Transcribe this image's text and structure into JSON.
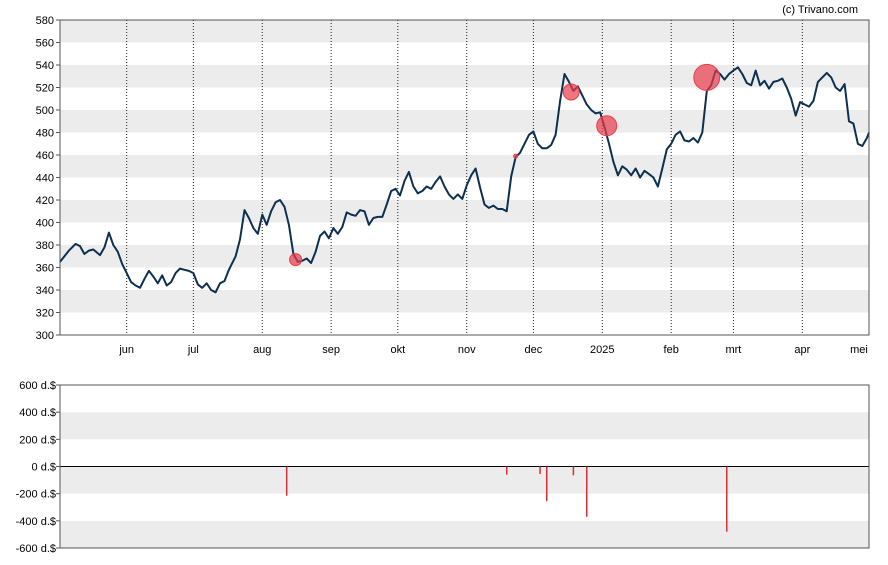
{
  "copyright": "(c) Trivano.com",
  "chart_data": [
    {
      "type": "line",
      "ylim": [
        300,
        580
      ],
      "yticks": [
        300,
        320,
        340,
        360,
        380,
        400,
        420,
        440,
        460,
        480,
        500,
        520,
        540,
        560,
        580
      ],
      "xlim": [
        "2024-05-02",
        "2025-05-01"
      ],
      "month_ticks": [
        {
          "label": "jun",
          "date": "2024-06-01"
        },
        {
          "label": "jul",
          "date": "2024-07-01"
        },
        {
          "label": "aug",
          "date": "2024-08-01"
        },
        {
          "label": "sep",
          "date": "2024-09-01"
        },
        {
          "label": "okt",
          "date": "2024-10-01"
        },
        {
          "label": "nov",
          "date": "2024-11-01"
        },
        {
          "label": "dec",
          "date": "2024-12-01"
        },
        {
          "label": "2025",
          "date": "2025-01-01"
        },
        {
          "label": "feb",
          "date": "2025-02-01"
        },
        {
          "label": "mrt",
          "date": "2025-03-01"
        },
        {
          "label": "apr",
          "date": "2025-04-01"
        },
        {
          "label": "mei",
          "date": "2025-05-01"
        }
      ],
      "line_color": "#0d3050",
      "price": [
        [
          "2024-05-02",
          365
        ],
        [
          "2024-05-06",
          375
        ],
        [
          "2024-05-09",
          381
        ],
        [
          "2024-05-11",
          379
        ],
        [
          "2024-05-13",
          372
        ],
        [
          "2024-05-15",
          375
        ],
        [
          "2024-05-17",
          376
        ],
        [
          "2024-05-20",
          371
        ],
        [
          "2024-05-22",
          378
        ],
        [
          "2024-05-24",
          391
        ],
        [
          "2024-05-26",
          380
        ],
        [
          "2024-05-28",
          374
        ],
        [
          "2024-05-30",
          363
        ],
        [
          "2024-06-01",
          355
        ],
        [
          "2024-06-03",
          347
        ],
        [
          "2024-06-05",
          344
        ],
        [
          "2024-06-07",
          342
        ],
        [
          "2024-06-09",
          350
        ],
        [
          "2024-06-11",
          357
        ],
        [
          "2024-06-13",
          352
        ],
        [
          "2024-06-15",
          346
        ],
        [
          "2024-06-17",
          353
        ],
        [
          "2024-06-19",
          344
        ],
        [
          "2024-06-21",
          347
        ],
        [
          "2024-06-23",
          355
        ],
        [
          "2024-06-25",
          359
        ],
        [
          "2024-06-27",
          358
        ],
        [
          "2024-06-29",
          357
        ],
        [
          "2024-07-01",
          355
        ],
        [
          "2024-07-03",
          345
        ],
        [
          "2024-07-05",
          342
        ],
        [
          "2024-07-07",
          346
        ],
        [
          "2024-07-09",
          340
        ],
        [
          "2024-07-11",
          338
        ],
        [
          "2024-07-13",
          346
        ],
        [
          "2024-07-15",
          348
        ],
        [
          "2024-07-17",
          358
        ],
        [
          "2024-07-20",
          370
        ],
        [
          "2024-07-22",
          385
        ],
        [
          "2024-07-24",
          411
        ],
        [
          "2024-07-26",
          404
        ],
        [
          "2024-07-28",
          395
        ],
        [
          "2024-07-30",
          390
        ],
        [
          "2024-08-01",
          407
        ],
        [
          "2024-08-03",
          398
        ],
        [
          "2024-08-05",
          410
        ],
        [
          "2024-08-07",
          418
        ],
        [
          "2024-08-09",
          420
        ],
        [
          "2024-08-11",
          414
        ],
        [
          "2024-08-13",
          398
        ],
        [
          "2024-08-15",
          372
        ],
        [
          "2024-08-17",
          365
        ],
        [
          "2024-08-19",
          366
        ],
        [
          "2024-08-21",
          368
        ],
        [
          "2024-08-23",
          364
        ],
        [
          "2024-08-25",
          374
        ],
        [
          "2024-08-27",
          388
        ],
        [
          "2024-08-29",
          392
        ],
        [
          "2024-08-31",
          386
        ],
        [
          "2024-09-02",
          395
        ],
        [
          "2024-09-04",
          390
        ],
        [
          "2024-09-06",
          396
        ],
        [
          "2024-09-08",
          409
        ],
        [
          "2024-09-10",
          407
        ],
        [
          "2024-09-12",
          406
        ],
        [
          "2024-09-14",
          411
        ],
        [
          "2024-09-16",
          410
        ],
        [
          "2024-09-18",
          398
        ],
        [
          "2024-09-20",
          404
        ],
        [
          "2024-09-22",
          405
        ],
        [
          "2024-09-24",
          405
        ],
        [
          "2024-09-26",
          416
        ],
        [
          "2024-09-28",
          428
        ],
        [
          "2024-09-30",
          430
        ],
        [
          "2024-10-02",
          424
        ],
        [
          "2024-10-04",
          437
        ],
        [
          "2024-10-06",
          445
        ],
        [
          "2024-10-08",
          432
        ],
        [
          "2024-10-10",
          426
        ],
        [
          "2024-10-12",
          428
        ],
        [
          "2024-10-14",
          432
        ],
        [
          "2024-10-16",
          430
        ],
        [
          "2024-10-18",
          436
        ],
        [
          "2024-10-20",
          441
        ],
        [
          "2024-10-22",
          432
        ],
        [
          "2024-10-24",
          425
        ],
        [
          "2024-10-26",
          421
        ],
        [
          "2024-10-28",
          425
        ],
        [
          "2024-10-30",
          421
        ],
        [
          "2024-11-01",
          433
        ],
        [
          "2024-11-03",
          442
        ],
        [
          "2024-11-05",
          448
        ],
        [
          "2024-11-07",
          431
        ],
        [
          "2024-11-09",
          416
        ],
        [
          "2024-11-11",
          413
        ],
        [
          "2024-11-13",
          415
        ],
        [
          "2024-11-15",
          412
        ],
        [
          "2024-11-17",
          412
        ],
        [
          "2024-11-19",
          410
        ],
        [
          "2024-11-21",
          441
        ],
        [
          "2024-11-23",
          458
        ],
        [
          "2024-11-25",
          462
        ],
        [
          "2024-11-27",
          470
        ],
        [
          "2024-11-29",
          478
        ],
        [
          "2024-12-01",
          481
        ],
        [
          "2024-12-03",
          470
        ],
        [
          "2024-12-05",
          466
        ],
        [
          "2024-12-07",
          466
        ],
        [
          "2024-12-09",
          469
        ],
        [
          "2024-12-11",
          478
        ],
        [
          "2024-12-13",
          508
        ],
        [
          "2024-12-15",
          532
        ],
        [
          "2024-12-17",
          525
        ],
        [
          "2024-12-19",
          517
        ],
        [
          "2024-12-21",
          521
        ],
        [
          "2024-12-23",
          513
        ],
        [
          "2024-12-25",
          505
        ],
        [
          "2024-12-27",
          500
        ],
        [
          "2024-12-29",
          497
        ],
        [
          "2024-12-31",
          498
        ],
        [
          "2025-01-02",
          485
        ],
        [
          "2025-01-04",
          470
        ],
        [
          "2025-01-06",
          454
        ],
        [
          "2025-01-08",
          442
        ],
        [
          "2025-01-10",
          450
        ],
        [
          "2025-01-12",
          447
        ],
        [
          "2025-01-14",
          442
        ],
        [
          "2025-01-16",
          448
        ],
        [
          "2025-01-18",
          440
        ],
        [
          "2025-01-20",
          446
        ],
        [
          "2025-01-22",
          443
        ],
        [
          "2025-01-24",
          440
        ],
        [
          "2025-01-26",
          432
        ],
        [
          "2025-01-28",
          448
        ],
        [
          "2025-01-30",
          465
        ],
        [
          "2025-02-01",
          470
        ],
        [
          "2025-02-03",
          478
        ],
        [
          "2025-02-05",
          481
        ],
        [
          "2025-02-07",
          473
        ],
        [
          "2025-02-09",
          472
        ],
        [
          "2025-02-11",
          475
        ],
        [
          "2025-02-13",
          471
        ],
        [
          "2025-02-15",
          480
        ],
        [
          "2025-02-17",
          517
        ],
        [
          "2025-02-19",
          522
        ],
        [
          "2025-02-21",
          535
        ],
        [
          "2025-02-23",
          532
        ],
        [
          "2025-02-25",
          527
        ],
        [
          "2025-02-27",
          532
        ],
        [
          "2025-03-01",
          535
        ],
        [
          "2025-03-03",
          538
        ],
        [
          "2025-03-05",
          532
        ],
        [
          "2025-03-07",
          524
        ],
        [
          "2025-03-09",
          522
        ],
        [
          "2025-03-11",
          535
        ],
        [
          "2025-03-13",
          522
        ],
        [
          "2025-03-15",
          526
        ],
        [
          "2025-03-17",
          519
        ],
        [
          "2025-03-19",
          525
        ],
        [
          "2025-03-21",
          526
        ],
        [
          "2025-03-23",
          528
        ],
        [
          "2025-03-25",
          520
        ],
        [
          "2025-03-27",
          510
        ],
        [
          "2025-03-29",
          495
        ],
        [
          "2025-03-31",
          507
        ],
        [
          "2025-04-02",
          505
        ],
        [
          "2025-04-04",
          503
        ],
        [
          "2025-04-06",
          508
        ],
        [
          "2025-04-08",
          525
        ],
        [
          "2025-04-10",
          529
        ],
        [
          "2025-04-12",
          533
        ],
        [
          "2025-04-14",
          529
        ],
        [
          "2025-04-16",
          520
        ],
        [
          "2025-04-18",
          517
        ],
        [
          "2025-04-20",
          523
        ],
        [
          "2025-04-22",
          490
        ],
        [
          "2025-04-24",
          488
        ],
        [
          "2025-04-26",
          470
        ],
        [
          "2025-04-28",
          468
        ],
        [
          "2025-04-30",
          475
        ],
        [
          "2025-05-01",
          480
        ]
      ],
      "markers": [
        {
          "date": "2024-08-16",
          "value": 367,
          "size": 6
        },
        {
          "date": "2024-11-23",
          "value": 459,
          "size": 2
        },
        {
          "date": "2024-12-18",
          "value": 516,
          "size": 8
        },
        {
          "date": "2025-01-03",
          "value": 486,
          "size": 10
        },
        {
          "date": "2025-02-17",
          "value": 529,
          "size": 13
        }
      ],
      "marker_color": "#e83c4a"
    },
    {
      "type": "bar",
      "unit": "d.$",
      "ylim": [
        -600,
        600
      ],
      "yticks": [
        {
          "value": 600,
          "label": "600 d.$"
        },
        {
          "value": 400,
          "label": "400 d.$"
        },
        {
          "value": 200,
          "label": "200 d.$"
        },
        {
          "value": 0,
          "label": "0 d.$"
        },
        {
          "value": -200,
          "label": "-200 d.$"
        },
        {
          "value": -400,
          "label": "-400 d.$"
        },
        {
          "value": -600,
          "label": "-600 d.$"
        }
      ],
      "bar_color": "#d0303c",
      "bars": [
        {
          "date": "2024-08-12",
          "value": -215
        },
        {
          "date": "2024-11-19",
          "value": -60
        },
        {
          "date": "2024-12-04",
          "value": -55
        },
        {
          "date": "2024-12-07",
          "value": -255
        },
        {
          "date": "2024-12-19",
          "value": -65
        },
        {
          "date": "2024-12-25",
          "value": -370
        },
        {
          "date": "2025-02-26",
          "value": -480
        }
      ]
    }
  ]
}
